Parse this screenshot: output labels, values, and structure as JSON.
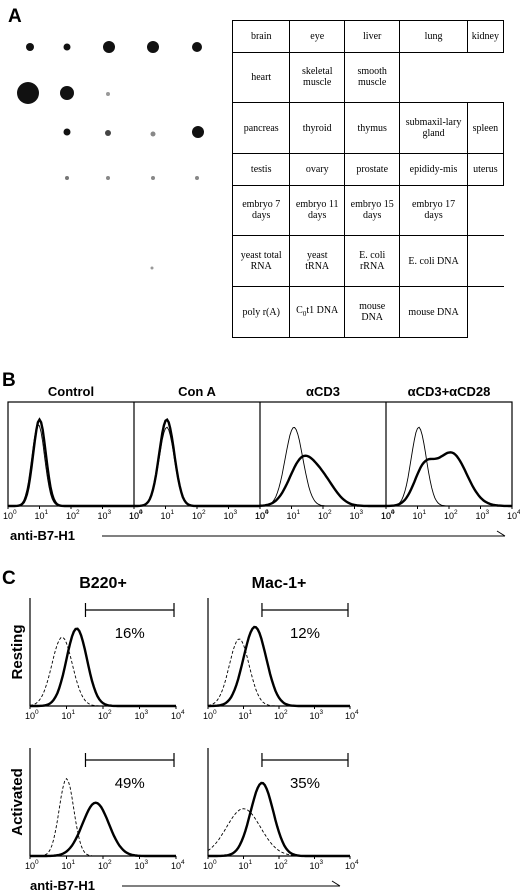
{
  "panel_a": {
    "letter": "A",
    "table_rows": [
      [
        "brain",
        "eye",
        "liver",
        "lung",
        "kidney"
      ],
      [
        "heart",
        "skeletal muscle",
        "smooth muscle",
        "",
        ""
      ],
      [
        "pancreas",
        "thyroid",
        "thymus",
        "submaxil-lary gland",
        "spleen"
      ],
      [
        "testis",
        "ovary",
        "prostate",
        "epididy-mis",
        "uterus"
      ],
      [
        "embryo 7 days",
        "embryo 11 days",
        "embryo 15 days",
        "embryo 17 days",
        ""
      ],
      [
        "yeast total RNA",
        "yeast tRNA",
        "E. coli rRNA",
        "E. coli DNA",
        ""
      ],
      [
        "poly r(A)",
        "C0t1 DNA",
        "mouse DNA",
        "mouse DNA",
        ""
      ]
    ]
  },
  "panel_b": {
    "letter": "B",
    "conditions": [
      "Control",
      "Con A",
      "αCD3",
      "αCD3+αCD28"
    ],
    "x_axis_label": "anti-B7-H1",
    "tick_labels": [
      "10",
      "10",
      "10",
      "10",
      "10"
    ],
    "tick_exps": [
      "0",
      "1",
      "2",
      "3",
      "4"
    ]
  },
  "panel_c": {
    "letter": "C",
    "columns": [
      "B220+",
      "Mac-1+"
    ],
    "rows": [
      "Resting",
      "Activated"
    ],
    "percentages": [
      [
        "16%",
        "12%"
      ],
      [
        "49%",
        "35%"
      ]
    ],
    "x_axis_label": "anti-B7-H1",
    "tick_labels": [
      "10",
      "10",
      "10",
      "10",
      "10"
    ],
    "tick_exps": [
      "0",
      "1",
      "2",
      "3",
      "4"
    ]
  }
}
